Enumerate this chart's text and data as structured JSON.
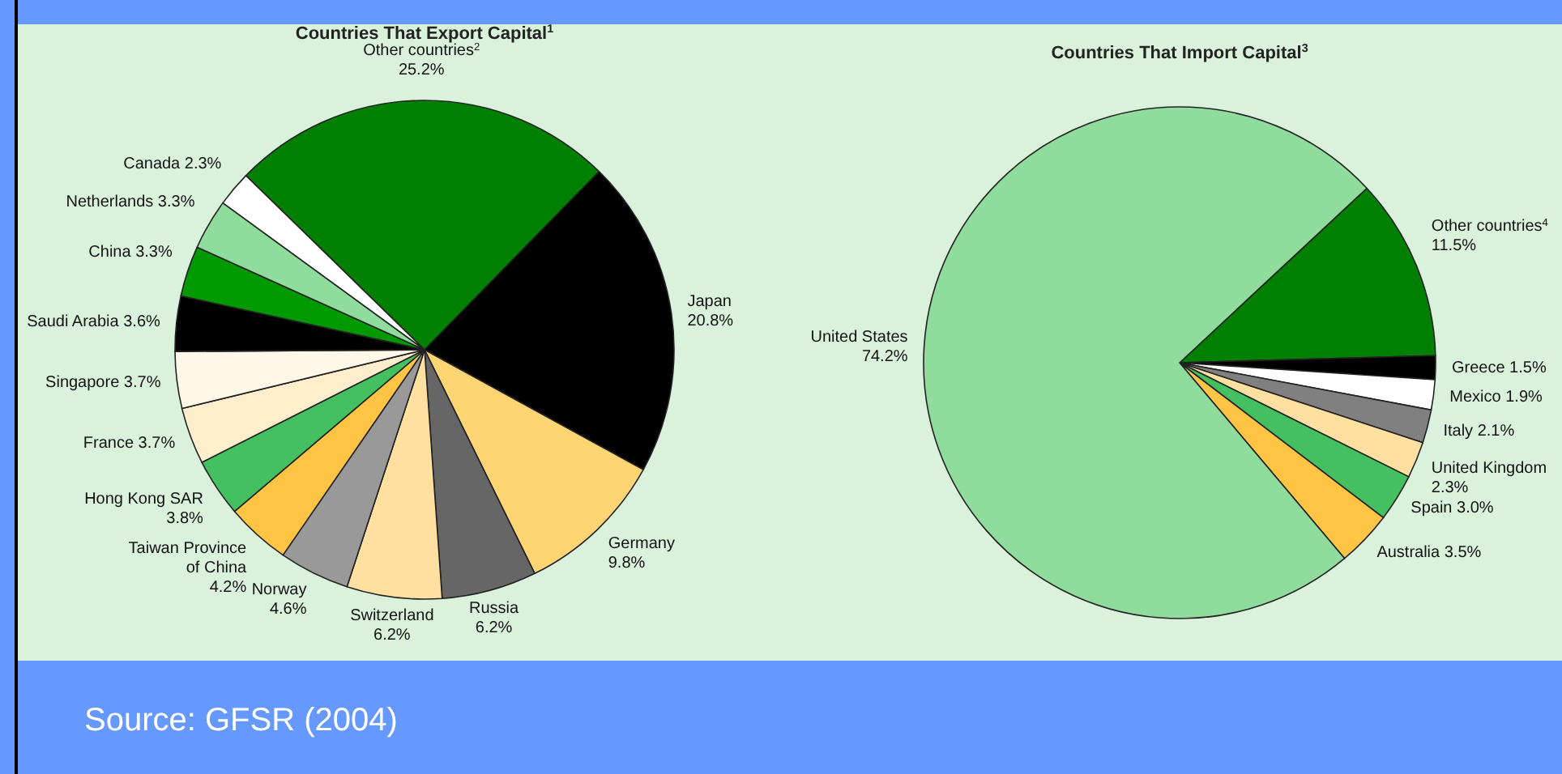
{
  "chart_data": [
    {
      "type": "pie",
      "title": "Countries That Export Capital$^{1}$",
      "categories": [
        "Other countries$^{2}$",
        "Japan",
        "Germany",
        "Russia",
        "Switzerland",
        "Norway",
        "Taiwan Province of China",
        "Hong Kong SAR",
        "France",
        "Singapore",
        "Saudi Arabia",
        "China",
        "Netherlands",
        "Canada"
      ],
      "values": [
        25.2,
        20.8,
        9.8,
        6.2,
        6.2,
        4.6,
        4.2,
        3.8,
        3.7,
        3.7,
        3.6,
        3.3,
        3.3,
        2.3
      ],
      "value_labels": [
        "25.2%",
        "20.8%",
        "9.8%",
        "6.2%",
        "6.2%",
        "4.6%",
        "4.2%",
        "3.8%",
        "3.7%",
        "3.7%",
        "3.6%",
        "3.3%",
        "3.3%",
        "2.3%"
      ],
      "colors": [
        "#008000",
        "#000000",
        "#ffd573",
        "#666666",
        "#ffe0a0",
        "#999999",
        "#ffc444",
        "#44c060",
        "#ffeecc",
        "#fff8e8",
        "#000000",
        "#009900",
        "#90dc9c",
        "#ffffff"
      ],
      "annotations": [
        "Source: GFSR (2004)"
      ]
    },
    {
      "type": "pie",
      "title": "Countries That Import Capital$^{3}$",
      "categories": [
        "Other countries$^{4}$",
        "Greece",
        "Mexico",
        "Italy",
        "United Kingdom",
        "Spain",
        "Australia",
        "United States"
      ],
      "values": [
        11.5,
        1.5,
        1.9,
        2.1,
        2.3,
        3.0,
        3.5,
        74.2
      ],
      "value_labels": [
        "11.5%",
        "1.5%",
        "1.9%",
        "2.1%",
        "2.3%",
        "3.0%",
        "3.5%",
        "74.2%"
      ],
      "colors": [
        "#008000",
        "#000000",
        "#ffffff",
        "#808080",
        "#ffe0a0",
        "#44c060",
        "#ffc444",
        "#90dc9c"
      ]
    }
  ]
}
